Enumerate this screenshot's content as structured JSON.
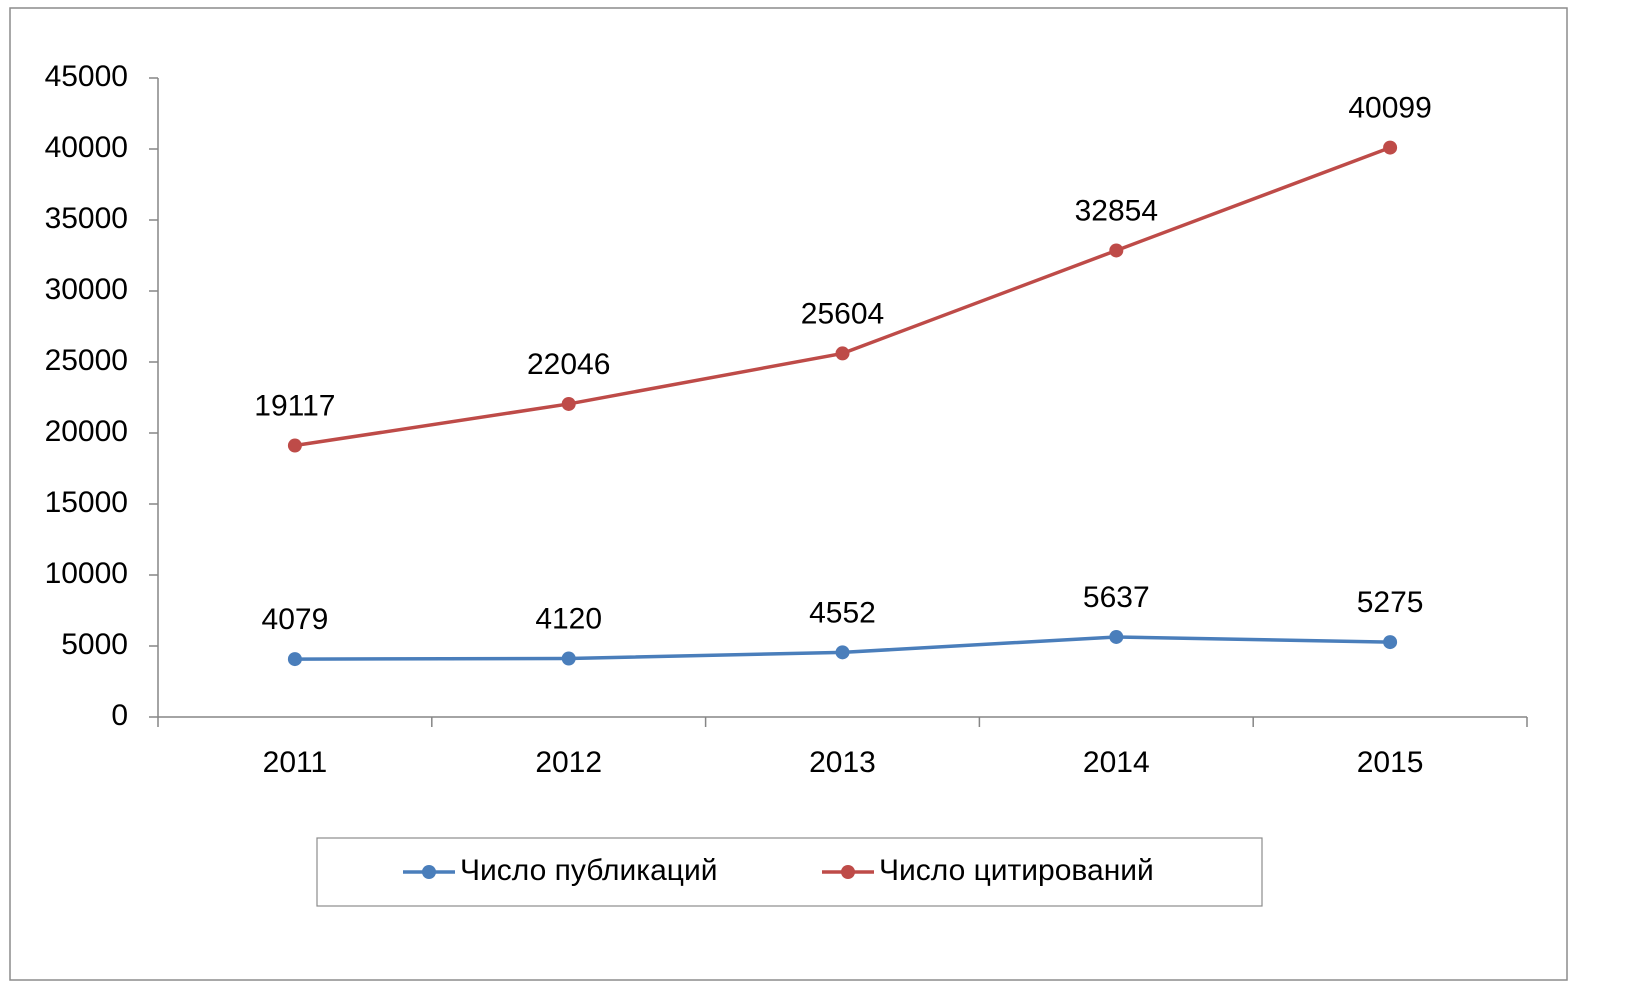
{
  "chart_data": {
    "type": "line",
    "categories": [
      "2011",
      "2012",
      "2013",
      "2014",
      "2015"
    ],
    "series": [
      {
        "name": "Число публикаций",
        "color": "#4a7ebb",
        "values": [
          4079,
          4120,
          4552,
          5637,
          5275
        ]
      },
      {
        "name": "Число цитирований",
        "color": "#be4b48",
        "values": [
          19117,
          22046,
          25604,
          32854,
          40099
        ]
      }
    ],
    "ylim": [
      0,
      45000
    ],
    "yticks": [
      0,
      5000,
      10000,
      15000,
      20000,
      25000,
      30000,
      35000,
      40000,
      45000
    ],
    "grid": false,
    "legend": "bottom"
  }
}
